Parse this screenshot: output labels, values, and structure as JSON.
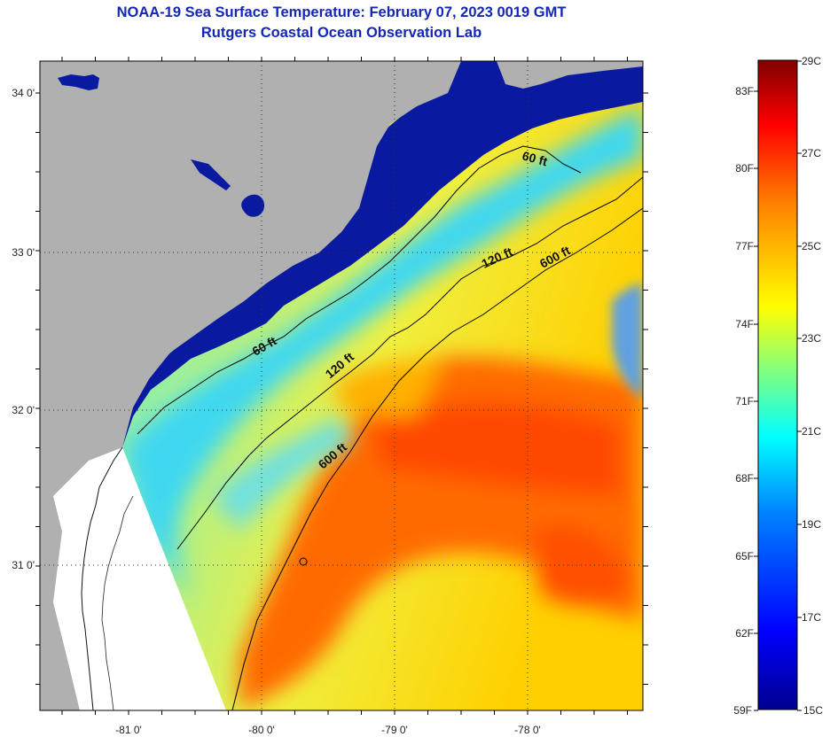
{
  "header": {
    "title": "NOAA-19 Sea Surface Temperature:  February 07, 2023 0019 GMT",
    "subtitle": "Rutgers Coastal Ocean Observation Lab"
  },
  "map": {
    "lat_labels": [
      "34 0'",
      "33 0'",
      "32 0'",
      "31 0'"
    ],
    "lon_labels": [
      "-81 0'",
      "-80 0'",
      "-79 0'",
      "-78 0'"
    ],
    "contours": [
      {
        "label": "60 ft"
      },
      {
        "label": "60 ft"
      },
      {
        "label": "120 ft"
      },
      {
        "label": "120 ft"
      },
      {
        "label": "600 ft"
      },
      {
        "label": "600 ft"
      }
    ],
    "colors": {
      "land": "#b0b0b0",
      "no_data": "#ffffff",
      "cold": "#0a1aa0",
      "warm": "#ff5a00"
    }
  },
  "colorbar": {
    "fahrenheit_labels": [
      "83F",
      "80F",
      "77F",
      "74F",
      "71F",
      "68F",
      "65F",
      "62F",
      "59F"
    ],
    "celsius_labels": [
      "29C",
      "27C",
      "25C",
      "23C",
      "21C",
      "19C",
      "17C",
      "15C"
    ],
    "colors": [
      "#00008f",
      "#0000ff",
      "#0080ff",
      "#00ffff",
      "#80ff80",
      "#ffff00",
      "#ff8000",
      "#ff0000",
      "#800000"
    ]
  }
}
